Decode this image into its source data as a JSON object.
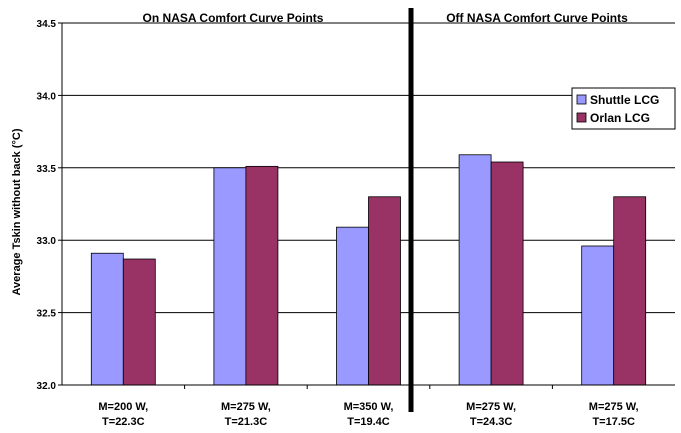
{
  "chart_data": {
    "type": "bar",
    "ylabel": "Average Tskin without back (°C)",
    "ylim": [
      32.0,
      34.5
    ],
    "yticks": [
      "32.0",
      "32.5",
      "33.0",
      "33.5",
      "34.0",
      "34.5"
    ],
    "grid": true,
    "legend_position": "right",
    "section_labels": [
      "On NASA Comfort Curve Points",
      "Off NASA Comfort Curve Points"
    ],
    "categories": [
      [
        "M=200 W,",
        "T=22.3C"
      ],
      [
        "M=275 W,",
        "T=21.3C"
      ],
      [
        "M=350 W,",
        "T=19.4C"
      ],
      [
        "M=275 W,",
        "T=24.3C"
      ],
      [
        "M=275 W,",
        "T=17.5C"
      ]
    ],
    "series": [
      {
        "name": "Shuttle LCG",
        "color": "#9999ff",
        "values": [
          32.91,
          33.5,
          33.09,
          33.59,
          32.96
        ]
      },
      {
        "name": "Orlan LCG",
        "color": "#993366",
        "values": [
          32.87,
          33.51,
          33.3,
          33.54,
          33.3
        ]
      }
    ]
  }
}
